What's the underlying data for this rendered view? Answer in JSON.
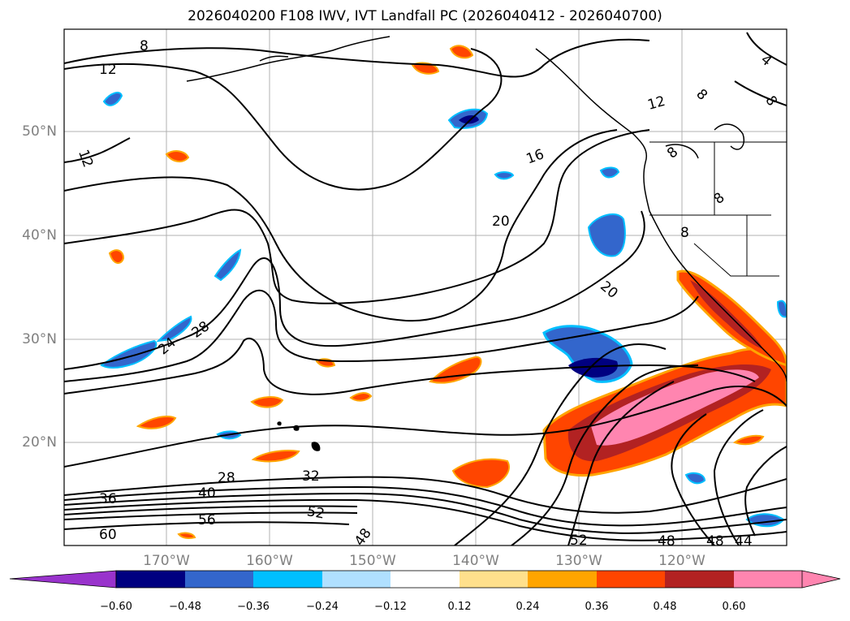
{
  "title": "2026040200 F108 IWV, IVT Landfall PC (2026040412 - 2026040700)",
  "lat_labels": [
    "50°N",
    "40°N",
    "30°N",
    "20°N"
  ],
  "lon_labels": [
    "170°W",
    "160°W",
    "150°W",
    "140°W",
    "130°W",
    "120°W"
  ],
  "contour_labels": [
    "8",
    "12",
    "12",
    "16",
    "20",
    "20",
    "24",
    "28",
    "28",
    "32",
    "36",
    "40",
    "56",
    "60",
    "52",
    "48",
    "52",
    "48",
    "48",
    "44",
    "4",
    "8",
    "12",
    "8",
    "8",
    "8",
    "8"
  ],
  "colorbar": {
    "ticks": [
      "−0.60",
      "−0.48",
      "−0.36",
      "−0.24",
      "−0.12",
      "0.12",
      "0.24",
      "0.36",
      "0.48",
      "0.60"
    ],
    "colors": [
      "#9933cc",
      "#000080",
      "#3366cc",
      "#00bfff",
      "#b0e0ff",
      "#ffffff",
      "#ffe08c",
      "#ffa500",
      "#ff4500",
      "#b22222",
      "#ff85b0"
    ]
  }
}
